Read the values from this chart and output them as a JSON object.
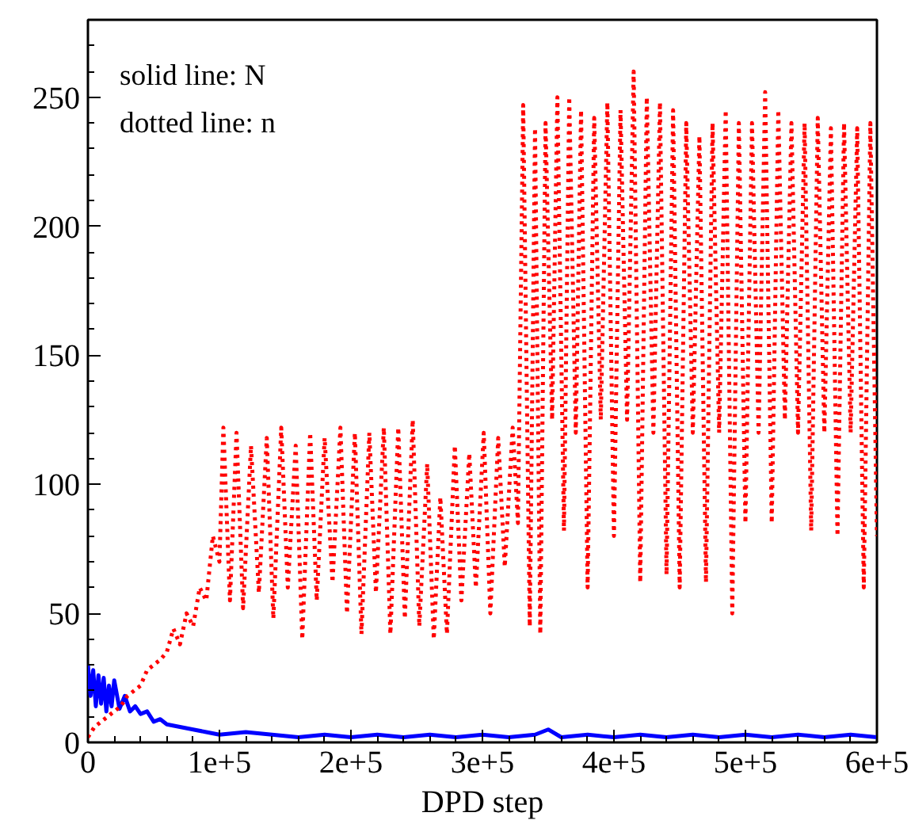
{
  "chart_data": {
    "type": "line",
    "xlabel": "DPD step",
    "annotations": [
      "solid line: N",
      "dotted line: n"
    ],
    "xlim": [
      0,
      600000
    ],
    "ylim": [
      0,
      280
    ],
    "xticks": [
      0,
      {
        "value": 100000,
        "label": "1e+5"
      },
      {
        "value": 200000,
        "label": "2e+5"
      },
      {
        "value": 300000,
        "label": "3e+5"
      },
      {
        "value": 400000,
        "label": "4e+5"
      },
      {
        "value": 500000,
        "label": "5e+5"
      },
      {
        "value": 600000,
        "label": "6e+5"
      }
    ],
    "yticks": [
      0,
      50,
      100,
      150,
      200,
      250
    ],
    "grid": false,
    "series": [
      {
        "color": "#0000ff",
        "line_style": "solid",
        "x": [
          0,
          2000,
          4000,
          6000,
          8000,
          10000,
          12000,
          14000,
          16000,
          18000,
          20000,
          24000,
          28000,
          32000,
          36000,
          40000,
          45000,
          50000,
          55000,
          60000,
          70000,
          80000,
          90000,
          100000,
          120000,
          140000,
          160000,
          180000,
          200000,
          220000,
          240000,
          260000,
          280000,
          300000,
          320000,
          340000,
          350000,
          360000,
          380000,
          400000,
          420000,
          440000,
          460000,
          480000,
          500000,
          520000,
          540000,
          560000,
          580000,
          600000
        ],
        "values": [
          30,
          18,
          28,
          14,
          26,
          15,
          25,
          12,
          22,
          14,
          24,
          13,
          18,
          12,
          14,
          11,
          12,
          8,
          9,
          7,
          6,
          5,
          4,
          3,
          4,
          3,
          2,
          3,
          2,
          3,
          2,
          3,
          2,
          3,
          2,
          3,
          5,
          2,
          3,
          2,
          3,
          2,
          3,
          2,
          3,
          2,
          3,
          2,
          3,
          2
        ]
      },
      {
        "color": "#ff0000",
        "line_style": "dotted",
        "x": [
          0,
          5000,
          10000,
          15000,
          20000,
          25000,
          30000,
          35000,
          40000,
          45000,
          50000,
          55000,
          60000,
          65000,
          70000,
          75000,
          80000,
          85000,
          90000,
          95000,
          100000,
          103000,
          108000,
          113000,
          118000,
          124000,
          130000,
          136000,
          141000,
          147000,
          152000,
          158000,
          163000,
          169000,
          174000,
          180000,
          186000,
          192000,
          197000,
          203000,
          208000,
          214000,
          219000,
          225000,
          230000,
          236000,
          241000,
          247000,
          252000,
          258000,
          263000,
          268000,
          273000,
          279000,
          284000,
          290000,
          295000,
          301000,
          306000,
          312000,
          317000,
          323000,
          327000,
          331000,
          336000,
          340000,
          344000,
          348000,
          353000,
          357000,
          362000,
          366000,
          371000,
          375000,
          380000,
          385000,
          390000,
          395000,
          400000,
          405000,
          410000,
          415000,
          420000,
          425000,
          430000,
          435000,
          440000,
          445000,
          450000,
          455000,
          460000,
          465000,
          470000,
          475000,
          480000,
          485000,
          490000,
          495000,
          500000,
          505000,
          510000,
          515000,
          520000,
          525000,
          530000,
          535000,
          540000,
          545000,
          550000,
          555000,
          560000,
          565000,
          570000,
          575000,
          580000,
          585000,
          590000,
          595000,
          600000
        ],
        "values": [
          2,
          6,
          8,
          10,
          12,
          14,
          18,
          20,
          22,
          28,
          30,
          32,
          35,
          44,
          38,
          50,
          45,
          60,
          55,
          80,
          70,
          122,
          55,
          120,
          52,
          115,
          58,
          118,
          48,
          122,
          60,
          115,
          40,
          120,
          55,
          118,
          62,
          122,
          50,
          120,
          42,
          120,
          58,
          122,
          42,
          122,
          48,
          125,
          45,
          108,
          40,
          95,
          42,
          115,
          55,
          112,
          60,
          120,
          50,
          118,
          68,
          122,
          85,
          247,
          45,
          238,
          42,
          240,
          125,
          250,
          82,
          250,
          120,
          245,
          60,
          242,
          125,
          248,
          80,
          245,
          125,
          260,
          62,
          250,
          120,
          248,
          65,
          245,
          60,
          240,
          120,
          235,
          62,
          240,
          120,
          245,
          50,
          240,
          85,
          240,
          120,
          252,
          85,
          245,
          125,
          240,
          120,
          240,
          82,
          242,
          120,
          238,
          80,
          240,
          120,
          238,
          60,
          240,
          80
        ]
      }
    ]
  }
}
